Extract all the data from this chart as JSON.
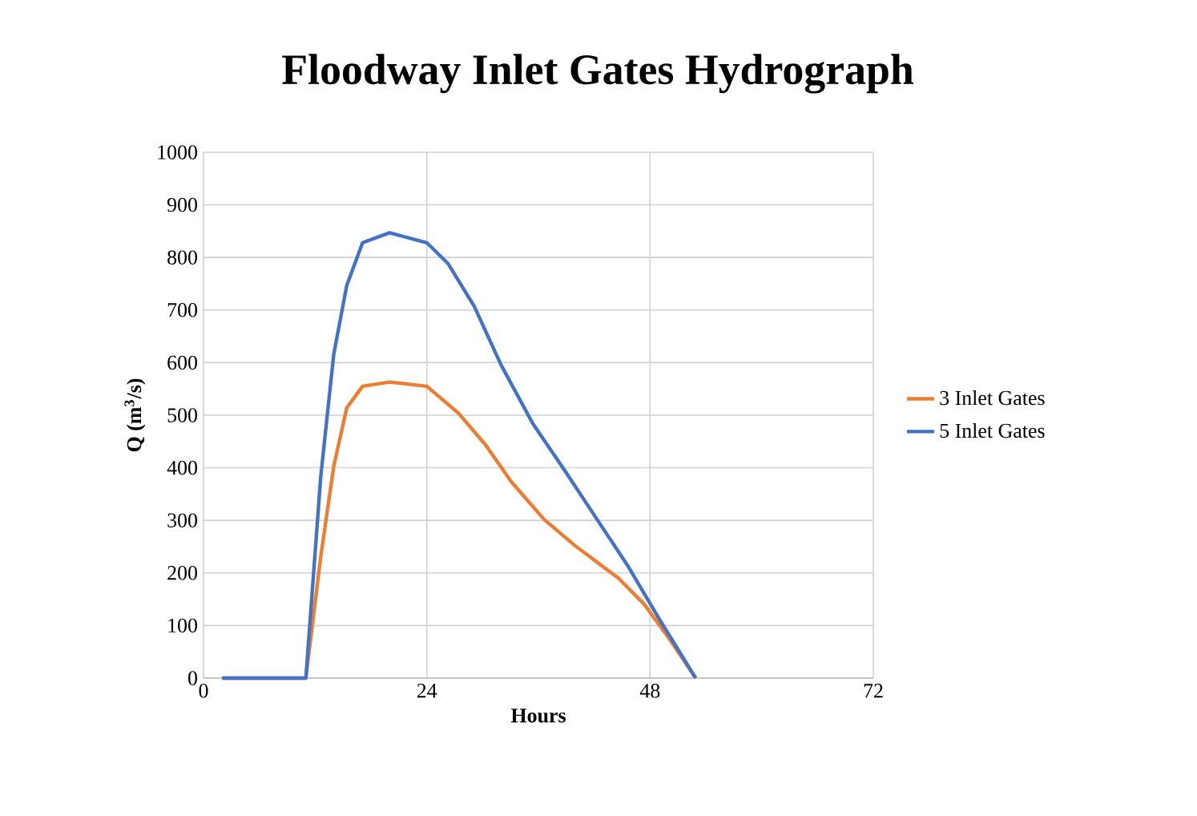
{
  "chart_data": {
    "type": "line",
    "title": "Floodway Inlet Gates Hydrograph",
    "xlabel": "Hours",
    "ylabel": "Q (m$^{3}$/s)",
    "xlim": [
      0,
      72
    ],
    "xticks": [
      0,
      24,
      48,
      72
    ],
    "ylim": [
      0,
      1000
    ],
    "yticks": [
      0,
      100,
      200,
      300,
      400,
      500,
      600,
      700,
      800,
      900,
      1000
    ],
    "grid": true,
    "legend": "right",
    "marker": "none",
    "line_style": "solid",
    "series": [
      {
        "name": "3 Inlet Gates",
        "color": "#ed7d31",
        "x": [
          2,
          11,
          12.6,
          14,
          15.4,
          17.1,
          20,
          24,
          27.4,
          30.3,
          33.1,
          36.6,
          40,
          44.6,
          47.4,
          50.3,
          52.9
        ],
        "values": [
          0,
          0,
          231,
          403,
          514,
          555,
          563,
          555,
          504,
          444,
          373,
          302,
          251,
          190,
          140,
          69,
          0
        ]
      },
      {
        "name": "5 Inlet Gates",
        "color": "#4472c4",
        "x": [
          2,
          11,
          12.6,
          14,
          15.4,
          17.1,
          20,
          24,
          26.3,
          29.1,
          32,
          35.4,
          38.9,
          42.3,
          45.7,
          49.1,
          52.9
        ],
        "values": [
          0,
          0,
          383,
          616,
          747,
          828,
          847,
          828,
          788,
          707,
          595,
          484,
          393,
          302,
          211,
          109,
          0
        ]
      }
    ]
  }
}
